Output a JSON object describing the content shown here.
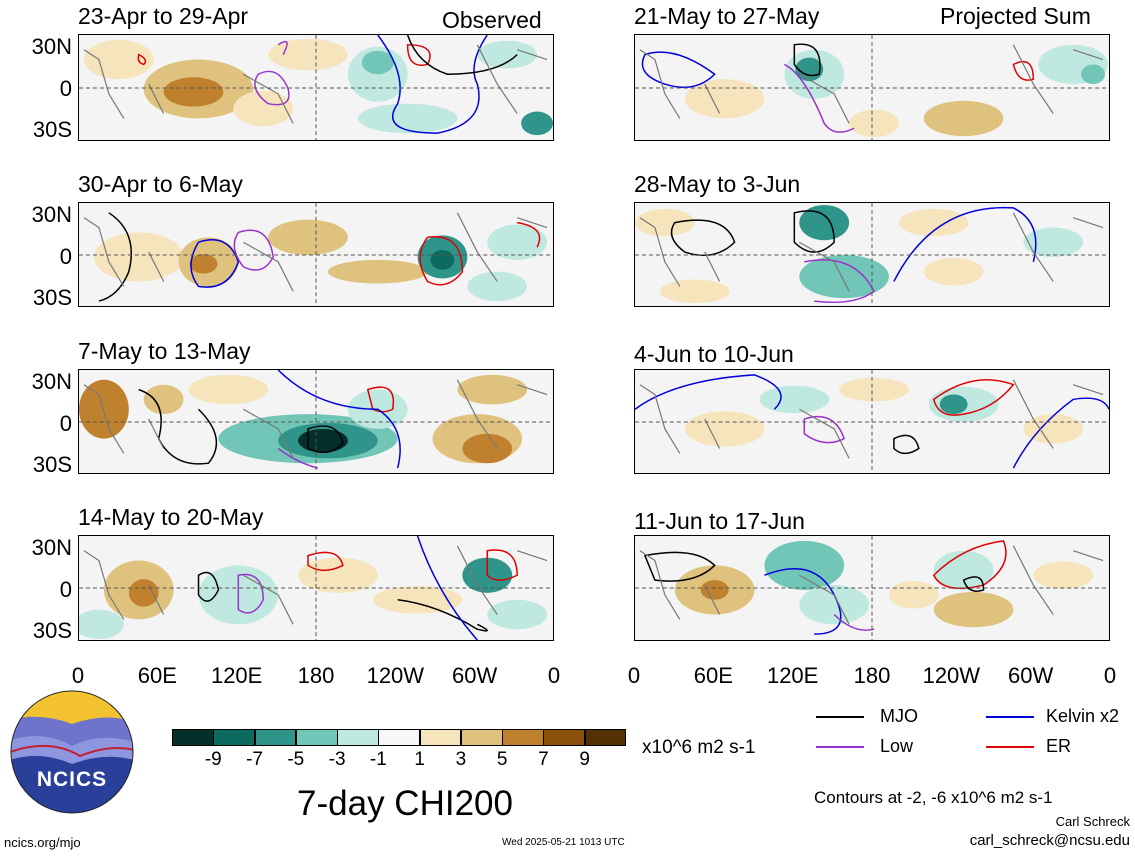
{
  "left_header": "Observed",
  "right_header": "Projected Sum",
  "panels_left": [
    {
      "title": "23-Apr to 29-Apr"
    },
    {
      "title": "30-Apr to 6-May"
    },
    {
      "title": "7-May to 13-May"
    },
    {
      "title": "14-May to 20-May"
    }
  ],
  "panels_right": [
    {
      "title": "21-May to 27-May"
    },
    {
      "title": "28-May to 3-Jun"
    },
    {
      "title": "4-Jun to 10-Jun"
    },
    {
      "title": "11-Jun to 17-Jun"
    }
  ],
  "lat_labels": [
    "30N",
    "0",
    "30S"
  ],
  "lon_labels": [
    "0",
    "60E",
    "120E",
    "180",
    "120W",
    "60W",
    "0"
  ],
  "colorbar": {
    "tick_labels": [
      "-9",
      "-7",
      "-5",
      "-3",
      "-1",
      "1",
      "3",
      "5",
      "7",
      "9"
    ],
    "colors": [
      "#03302a",
      "#0c6b5e",
      "#2f958a",
      "#72c6b8",
      "#bfe8e0",
      "#f7f7f7",
      "#f6e4bd",
      "#dfc27d",
      "#bf812d",
      "#8c510a",
      "#543005"
    ],
    "units": "x10^6 m2 s-1"
  },
  "legend": [
    {
      "label": "MJO",
      "color": "#000000"
    },
    {
      "label": "Kelvin x2",
      "color": "#0000dd"
    },
    {
      "label": "Low",
      "color": "#9932cc"
    },
    {
      "label": "ER",
      "color": "#dd0000"
    }
  ],
  "main_title": "7-day CHI200",
  "contour_note": "Contours at -2, -6 x10^6 m2 s-1",
  "logo_text": "NCICS",
  "footer_left": "ncics.org/mjo",
  "timestamp": "Wed 2025-05-21 1013 UTC",
  "credit_name": "Carl Schreck",
  "credit_email": "carl_schreck@ncsu.edu"
}
